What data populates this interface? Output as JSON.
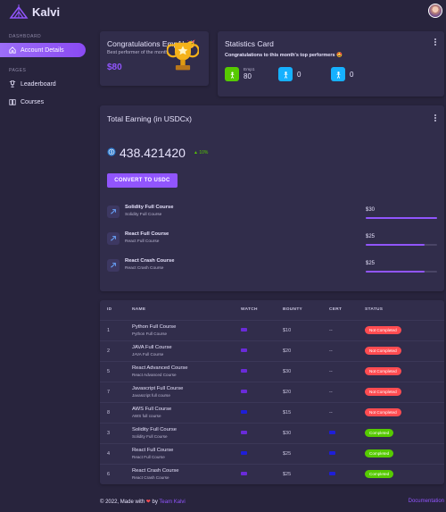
{
  "app": {
    "name": "Kalvi"
  },
  "sidebar": {
    "sections": [
      {
        "label": "DASHBOARD",
        "items": [
          {
            "label": "Account Details",
            "icon": "home-icon",
            "active": true
          }
        ]
      },
      {
        "label": "PAGES",
        "items": [
          {
            "label": "Leaderboard",
            "icon": "trophy-icon"
          },
          {
            "label": "Courses",
            "icon": "book-icon"
          }
        ]
      }
    ]
  },
  "congrats": {
    "title": "Congratulations Emp1! 🥳",
    "subtitle": "Best performer of the month",
    "amount": "$80"
  },
  "stats": {
    "title": "Statistics Card",
    "subtitle": "Congratulations to this month's top performers 🤩",
    "items": [
      {
        "label": "Emp1",
        "value": "80",
        "color": "#56ca00"
      },
      {
        "label": "",
        "value": "0",
        "color": "#16b1ff"
      },
      {
        "label": "",
        "value": "0",
        "color": "#16b1ff"
      }
    ]
  },
  "earning": {
    "title": "Total Earning (in USDCx)",
    "amount": "438.421420",
    "change": "10%",
    "button": "CONVERT TO USDC",
    "courses": [
      {
        "name": "Solidity Full Course",
        "sub": "Solidity Full Course",
        "amount": "$30",
        "progress": 1.0
      },
      {
        "name": "React Full Course",
        "sub": "React Full Course",
        "amount": "$25",
        "progress": 0.83
      },
      {
        "name": "React Crash Course",
        "sub": "React Crash Course",
        "amount": "$25",
        "progress": 0.83
      }
    ]
  },
  "table": {
    "headers": [
      "ID",
      "NAME",
      "WATCH",
      "BOUNTY",
      "CERT",
      "STATUS"
    ],
    "rows": [
      {
        "id": "1",
        "name": "Python Full Course",
        "sub": "Python Full Course",
        "watch": "purple",
        "bounty": "$10",
        "cert": "--",
        "status": "Not Completed"
      },
      {
        "id": "2",
        "name": "JAVA Full Course",
        "sub": "JAVA Full Course",
        "watch": "purple",
        "bounty": "$20",
        "cert": "--",
        "status": "Not Completed"
      },
      {
        "id": "5",
        "name": "React Advanced Course",
        "sub": "React Advanced Course",
        "watch": "purple",
        "bounty": "$30",
        "cert": "--",
        "status": "Not Completed"
      },
      {
        "id": "7",
        "name": "Javascript Full Course",
        "sub": "Javascript full course",
        "watch": "purple",
        "bounty": "$20",
        "cert": "--",
        "status": "Not Completed"
      },
      {
        "id": "8",
        "name": "AWS Full Course",
        "sub": "AWS full course",
        "watch": "blue",
        "bounty": "$15",
        "cert": "--",
        "status": "Not Completed"
      },
      {
        "id": "3",
        "name": "Solidity Full Course",
        "sub": "Solidity Full Course",
        "watch": "purple",
        "bounty": "$30",
        "cert": "blue",
        "status": "Completed"
      },
      {
        "id": "4",
        "name": "React Full Course",
        "sub": "React Full Course",
        "watch": "blue",
        "bounty": "$25",
        "cert": "blue",
        "status": "Completed"
      },
      {
        "id": "6",
        "name": "React Crash Course",
        "sub": "React Crash Course",
        "watch": "purple",
        "bounty": "$25",
        "cert": "blue",
        "status": "Completed"
      }
    ]
  },
  "footer": {
    "copyright": "© 2022, Made with",
    "by": "by",
    "team": "Team Kalvi",
    "doc": "Documentation"
  },
  "colors": {
    "accent": "#9155fd",
    "success": "#56ca00",
    "error": "#ff4c51",
    "info": "#16b1ff"
  }
}
